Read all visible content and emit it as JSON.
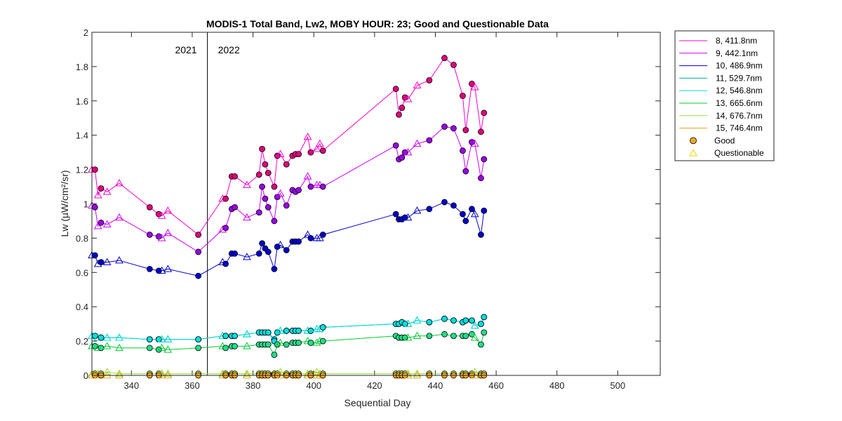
{
  "chart_data": {
    "type": "line",
    "title": "MODIS-1 Total Band,  Lw2, MOBY HOUR: 23;  Good and Questionable Data",
    "xlabel": "Sequential Day",
    "ylabel": "Lw (µW/cm²/sr)",
    "xlim": [
      327,
      514
    ],
    "ylim": [
      0,
      2
    ],
    "xticks": [
      340,
      360,
      380,
      400,
      420,
      440,
      460,
      480,
      500
    ],
    "yticks": [
      0,
      0.2,
      0.4,
      0.6,
      0.8,
      1,
      1.2,
      1.4,
      1.6,
      1.8,
      2
    ],
    "grid": false,
    "legend_position": "outside-top-right",
    "year_divider": {
      "x": 365,
      "left_label": "2021",
      "right_label": "2022"
    },
    "x": [
      327,
      328,
      329,
      330,
      332,
      336,
      346,
      349,
      350,
      352,
      362,
      370,
      371,
      373,
      374,
      378,
      382,
      383,
      384,
      385,
      387,
      388,
      389,
      391,
      393,
      394,
      395,
      398,
      399,
      401,
      402,
      403,
      427,
      428,
      429,
      430,
      431,
      434,
      438,
      443,
      446,
      449,
      450,
      452,
      453,
      455,
      456
    ],
    "quality": [
      "Q",
      "G",
      "Q",
      "G",
      "Q",
      "Q",
      "G",
      "G",
      "Q",
      "Q",
      "G",
      "Q",
      "G",
      "G",
      "G",
      "Q",
      "G",
      "G",
      "G",
      "G",
      "G",
      "G",
      "Q",
      "G",
      "G",
      "G",
      "G",
      "Q",
      "G",
      "Q",
      "Q",
      "G",
      "G",
      "G",
      "G",
      "G",
      "Q",
      "Q",
      "G",
      "G",
      "G",
      "G",
      "G",
      "G",
      "Q",
      "G",
      "G"
    ],
    "series": [
      {
        "name": "8, 411.8nm",
        "color": "#ff00cc",
        "marker": "#e0007a",
        "values": [
          1.2,
          1.2,
          1.05,
          1.09,
          1.07,
          1.12,
          0.98,
          0.94,
          0.93,
          0.96,
          0.82,
          1.03,
          1.03,
          1.16,
          1.16,
          1.11,
          1.17,
          1.32,
          1.23,
          1.18,
          1.1,
          1.28,
          1.29,
          1.23,
          1.28,
          1.29,
          1.29,
          1.39,
          1.3,
          1.32,
          1.35,
          1.31,
          1.67,
          1.52,
          1.56,
          1.62,
          1.61,
          1.69,
          1.72,
          1.85,
          1.81,
          1.63,
          1.43,
          1.7,
          1.68,
          1.42,
          1.53
        ]
      },
      {
        "name": "9, 442.1nm",
        "color": "#cc00ff",
        "marker": "#9900e6",
        "values": [
          0.99,
          0.98,
          0.87,
          0.89,
          0.88,
          0.92,
          0.82,
          0.81,
          0.8,
          0.83,
          0.72,
          0.85,
          0.86,
          0.97,
          0.98,
          0.92,
          0.95,
          1.1,
          1.03,
          0.98,
          0.9,
          1.04,
          1.06,
          0.99,
          1.08,
          1.07,
          1.08,
          1.16,
          1.1,
          1.11,
          1.11,
          1.1,
          1.34,
          1.26,
          1.27,
          1.3,
          1.3,
          1.35,
          1.37,
          1.45,
          1.44,
          1.31,
          1.19,
          1.36,
          1.35,
          1.15,
          1.26
        ]
      },
      {
        "name": "10, 486.9nm",
        "color": "#0000cc",
        "marker": "#0000cc",
        "values": [
          0.7,
          0.7,
          0.65,
          0.66,
          0.66,
          0.67,
          0.62,
          0.61,
          0.61,
          0.62,
          0.58,
          0.66,
          0.65,
          0.71,
          0.71,
          0.69,
          0.71,
          0.77,
          0.74,
          0.72,
          0.62,
          0.75,
          0.76,
          0.73,
          0.78,
          0.78,
          0.78,
          0.82,
          0.8,
          0.8,
          0.8,
          0.82,
          0.94,
          0.91,
          0.91,
          0.92,
          0.92,
          0.96,
          0.97,
          1.01,
          0.99,
          0.94,
          0.9,
          0.97,
          0.94,
          0.82,
          0.96
        ]
      },
      {
        "name": "11, 529.7nm",
        "color": "#00aaaa",
        "marker": "#1a9edb",
        "values": [
          0.23,
          0.23,
          0.22,
          0.22,
          0.22,
          0.22,
          0.21,
          0.21,
          0.21,
          0.21,
          0.21,
          0.23,
          0.23,
          0.23,
          0.23,
          0.24,
          0.25,
          0.25,
          0.25,
          0.25,
          0.21,
          0.25,
          0.26,
          0.26,
          0.26,
          0.26,
          0.26,
          0.26,
          0.26,
          0.27,
          0.27,
          0.28,
          0.3,
          0.3,
          0.31,
          0.3,
          0.3,
          0.32,
          0.31,
          0.33,
          0.32,
          0.31,
          0.32,
          0.32,
          0.29,
          0.3,
          0.34
        ]
      },
      {
        "name": "12, 546.8nm",
        "color": "#00dddd",
        "marker": "#00dddd",
        "values": [
          0.23,
          0.23,
          0.22,
          0.22,
          0.22,
          0.22,
          0.21,
          0.21,
          0.21,
          0.21,
          0.21,
          0.23,
          0.23,
          0.23,
          0.23,
          0.24,
          0.25,
          0.25,
          0.25,
          0.25,
          0.2,
          0.25,
          0.26,
          0.26,
          0.26,
          0.26,
          0.26,
          0.26,
          0.26,
          0.27,
          0.27,
          0.28,
          0.3,
          0.3,
          0.31,
          0.3,
          0.3,
          0.32,
          0.31,
          0.33,
          0.32,
          0.31,
          0.32,
          0.32,
          0.29,
          0.3,
          0.34
        ]
      },
      {
        "name": "13, 665.6nm",
        "color": "#00cc33",
        "marker": "#22dd88",
        "values": [
          0.17,
          0.17,
          0.16,
          0.16,
          0.17,
          0.16,
          0.16,
          0.15,
          0.16,
          0.15,
          0.16,
          0.17,
          0.16,
          0.17,
          0.17,
          0.17,
          0.18,
          0.18,
          0.18,
          0.18,
          0.12,
          0.18,
          0.19,
          0.18,
          0.19,
          0.19,
          0.19,
          0.2,
          0.19,
          0.19,
          0.2,
          0.2,
          0.23,
          0.22,
          0.22,
          0.22,
          0.22,
          0.23,
          0.23,
          0.24,
          0.23,
          0.23,
          0.23,
          0.24,
          0.22,
          0.18,
          0.25
        ]
      },
      {
        "name": "14, 676.7nm",
        "color": "#99dd33",
        "marker": "#b3e63d",
        "values": [
          0.01,
          0.01,
          0.01,
          0.01,
          0.02,
          0.01,
          0.01,
          0.01,
          0.01,
          0.01,
          0.01,
          0.01,
          0.01,
          0.01,
          0.01,
          0.01,
          0.01,
          0.01,
          0.01,
          0.01,
          0.01,
          0.01,
          0.02,
          0.01,
          0.01,
          0.01,
          0.01,
          0.01,
          0.01,
          0.02,
          0.01,
          0.01,
          0.01,
          0.01,
          0.01,
          0.01,
          0.01,
          0.01,
          0.01,
          0.01,
          0.01,
          0.01,
          0.01,
          0.01,
          0.02,
          0.01,
          0.01
        ]
      },
      {
        "name": "15, 746.4nm",
        "color": "#e6a21a",
        "marker": "#f5a623",
        "values": [
          0.0,
          0.0,
          0.0,
          0.0,
          0.0,
          0.0,
          0.0,
          0.0,
          0.0,
          0.0,
          0.0,
          0.0,
          0.0,
          0.0,
          0.0,
          0.0,
          0.0,
          0.0,
          0.0,
          0.0,
          0.0,
          0.0,
          0.0,
          0.0,
          0.0,
          0.0,
          0.0,
          0.0,
          0.0,
          0.0,
          0.0,
          0.0,
          0.0,
          0.0,
          0.0,
          0.0,
          0.0,
          0.0,
          0.0,
          0.0,
          0.0,
          0.0,
          0.0,
          0.0,
          0.0,
          0.0,
          0.0
        ]
      }
    ],
    "marker_legend": [
      {
        "name": "Good",
        "shape": "circle",
        "color": "#f5a623"
      },
      {
        "name": "Questionable",
        "shape": "triangle",
        "color": "#f5d000"
      }
    ]
  }
}
